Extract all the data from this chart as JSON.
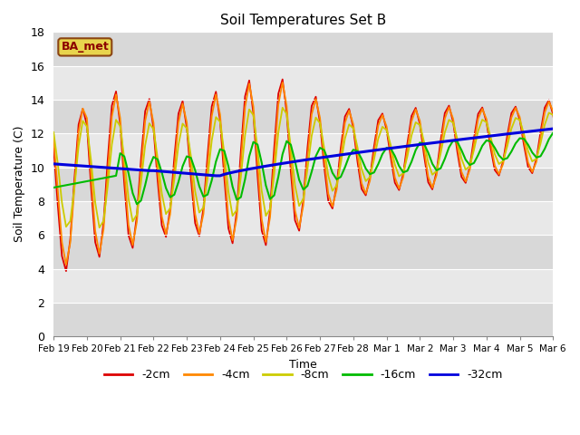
{
  "title": "Soil Temperatures Set B",
  "xlabel": "Time",
  "ylabel": "Soil Temperature (C)",
  "annotation": "BA_met",
  "ylim": [
    0,
    18
  ],
  "colors": {
    "-2cm": "#dd0000",
    "-4cm": "#ff8800",
    "-8cm": "#cccc00",
    "-16cm": "#00bb00",
    "-32cm": "#0000dd"
  },
  "tick_labels": [
    "Feb 19",
    "Feb 20",
    "Feb 21",
    "Feb 22",
    "Feb 23",
    "Feb 24",
    "Feb 25",
    "Feb 26",
    "Feb 27",
    "Feb 28",
    "Mar 1",
    "Mar 2",
    "Mar 3",
    "Mar 4",
    "Mar 5",
    "Mar 6"
  ],
  "legend_entries": [
    "-2cm",
    "-4cm",
    "-8cm",
    "-16cm",
    "-32cm"
  ],
  "background_bands": [
    [
      0,
      2,
      "#d8d8d8"
    ],
    [
      2,
      4,
      "#e8e8e8"
    ],
    [
      4,
      6,
      "#d8d8d8"
    ],
    [
      6,
      8,
      "#e8e8e8"
    ],
    [
      8,
      10,
      "#d8d8d8"
    ],
    [
      10,
      12,
      "#e8e8e8"
    ],
    [
      12,
      14,
      "#d8d8d8"
    ],
    [
      14,
      16,
      "#e8e8e8"
    ],
    [
      16,
      18,
      "#d8d8d8"
    ]
  ]
}
